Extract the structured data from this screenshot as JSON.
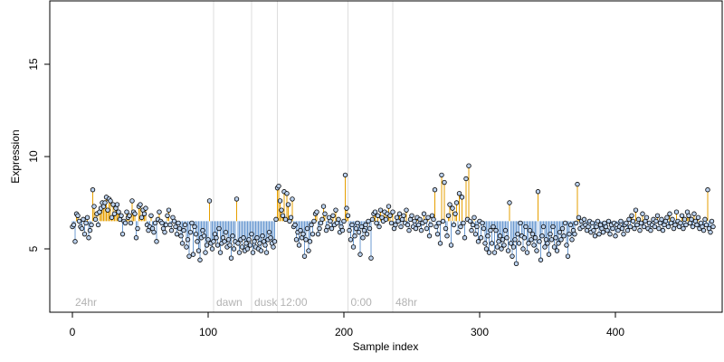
{
  "chart_data": {
    "type": "scatter",
    "xlabel": "Sample index",
    "ylabel": "Expression",
    "xlim": [
      0,
      470
    ],
    "ylim": [
      1.5,
      18.5
    ],
    "x_ticks": [
      0,
      100,
      200,
      300,
      400
    ],
    "y_ticks": [
      5,
      10,
      15
    ],
    "baseline": 6.5,
    "colors": {
      "above": "#e69f00",
      "below": "#6c9bd2",
      "point_fill": "#bcd2ee",
      "point_stroke": "#000000",
      "phase_line": "#dedede",
      "phase_text": "#b3b3b3"
    },
    "phase_markers": [
      {
        "label": "24hr",
        "x": 0
      },
      {
        "label": "dawn",
        "x": 104
      },
      {
        "label": "dusk",
        "x": 132
      },
      {
        "label": "12:00",
        "x": 151
      },
      {
        "label": "0:00",
        "x": 203
      },
      {
        "label": "48hr",
        "x": 236
      }
    ],
    "series": [
      {
        "values": [
          6.2,
          6.3,
          5.4,
          6.9,
          6.8,
          6.5,
          6.2,
          6.1,
          6.6,
          5.8,
          6.4,
          6.7,
          5.6,
          6.0,
          6.3,
          8.2,
          7.3,
          6.6,
          6.9,
          6.3,
          7.0,
          7.2,
          7.5,
          7.3,
          7.5,
          7.8,
          7.1,
          7.7,
          7.6,
          6.7,
          7.4,
          6.9,
          7.2,
          7.4,
          7.0,
          6.6,
          6.8,
          5.8,
          6.5,
          6.4,
          7.0,
          6.7,
          6.8,
          6.4,
          7.6,
          7.0,
          6.9,
          5.6,
          6.1,
          7.3,
          7.4,
          6.7,
          7.1,
          6.9,
          7.2,
          6.3,
          6.0,
          6.2,
          6.8,
          6.1,
          5.9,
          6.4,
          5.4,
          6.6,
          7.0,
          6.5,
          6.4,
          6.1,
          5.9,
          6.3,
          6.8,
          7.1,
          6.3,
          6.0,
          6.7,
          6.5,
          6.2,
          5.8,
          6.4,
          6.1,
          5.7,
          5.3,
          6.0,
          6.3,
          5.1,
          5.5,
          4.6,
          5.9,
          6.4,
          4.7,
          6.2,
          5.8,
          5.4,
          4.9,
          4.4,
          5.6,
          6.0,
          5.7,
          4.8,
          5.2,
          5.5,
          7.6,
          5.3,
          5.0,
          5.4,
          5.8,
          5.6,
          5.2,
          6.1,
          4.8,
          5.3,
          5.6,
          5.4,
          5.9,
          5.1,
          5.5,
          5.2,
          4.5,
          5.7,
          5.0,
          5.4,
          7.7,
          5.3,
          4.8,
          5.5,
          5.1,
          5.6,
          4.9,
          5.3,
          5.0,
          5.5,
          5.2,
          5.8,
          4.8,
          5.4,
          5.1,
          5.6,
          5.0,
          5.3,
          4.9,
          5.7,
          5.4,
          5.2,
          4.8,
          5.5,
          5.9,
          5.6,
          5.3,
          5.1,
          5.4,
          6.6,
          8.3,
          8.4,
          7.6,
          7.1,
          6.8,
          8.1,
          6.6,
          8.0,
          7.4,
          6.5,
          6.7,
          7.7,
          6.2,
          6.3,
          5.5,
          5.9,
          5.2,
          6.0,
          5.6,
          5.8,
          4.6,
          5.5,
          6.1,
          4.9,
          5.4,
          6.3,
          5.8,
          6.5,
          6.9,
          7.0,
          5.8,
          6.1,
          6.4,
          6.6,
          7.3,
          6.9,
          6.0,
          6.2,
          6.7,
          6.5,
          6.1,
          6.8,
          6.3,
          7.1,
          6.4,
          6.6,
          5.9,
          6.2,
          6.0,
          6.5,
          9.0,
          7.2,
          6.8,
          6.0,
          5.5,
          6.3,
          5.1,
          5.7,
          6.1
        ]
      },
      {
        "values": [
          6.4,
          5.9,
          4.7,
          6.2,
          5.6,
          6.0,
          6.3,
          5.8,
          6.5,
          6.1,
          4.5,
          6.6,
          6.9,
          7.0,
          6.4,
          6.8,
          6.2,
          7.1,
          6.7,
          6.5,
          7.0,
          6.6,
          6.9,
          7.3,
          6.8,
          6.4,
          7.0,
          6.1,
          6.3,
          6.7,
          6.5,
          6.9,
          6.2,
          6.6,
          6.8,
          6.4,
          7.1,
          6.3,
          6.0,
          6.6,
          6.8,
          6.2,
          6.5,
          6.1,
          6.7,
          6.3,
          6.6,
          6.0,
          6.4,
          6.9,
          6.5,
          6.1,
          6.7,
          5.7,
          6.3,
          6.8,
          6.6,
          8.2,
          6.2,
          5.8,
          6.4,
          5.3,
          9.0,
          6.5,
          8.6,
          6.1,
          5.7,
          6.8,
          7.4,
          5.2,
          7.2,
          6.3,
          6.9,
          7.5,
          5.9,
          8.0,
          6.2,
          7.8,
          6.4,
          5.6,
          8.8,
          6.6,
          9.5,
          6.5,
          6.0,
          6.3,
          6.7,
          5.8,
          6.2,
          5.4,
          6.5,
          5.6,
          6.4,
          6.1,
          5.3,
          5.0,
          5.7,
          4.8,
          6.0,
          5.3,
          6.2,
          4.8,
          6.0,
          5.1,
          5.4,
          5.7,
          5.0,
          5.5,
          5.2,
          6.0,
          5.6,
          4.9,
          7.5,
          5.3,
          4.6,
          5.1,
          5.5,
          4.2,
          5.8,
          5.3,
          6.4,
          5.7,
          5.0,
          5.6,
          6.2,
          4.8,
          5.3,
          6.0,
          5.5,
          5.8,
          5.2,
          5.6,
          4.9,
          8.1,
          5.4,
          4.4,
          5.7,
          6.2,
          5.1,
          5.5,
          5.3,
          4.7,
          5.8,
          5.5,
          6.2,
          5.1,
          5.6,
          4.9,
          5.3,
          5.9,
          5.5,
          6.1,
          5.7,
          6.4,
          5.2,
          4.6,
          5.8,
          6.3,
          5.5,
          6.0,
          5.8,
          6.4,
          8.5,
          6.7,
          6.1,
          6.5,
          6.2,
          6.6,
          6.3,
          6.0,
          6.2,
          6.5,
          5.9,
          6.4,
          6.0,
          5.7,
          6.2,
          6.5,
          5.8,
          6.3,
          6.1,
          5.9,
          6.4,
          6.2,
          6.0,
          6.5,
          5.8,
          6.3,
          6.1,
          6.4,
          5.7,
          6.3,
          6.0,
          6.2,
          6.5,
          6.1,
          5.8,
          6.3,
          6.4,
          6.0,
          6.6,
          6.2,
          6.8,
          6.5,
          6.1,
          7.1,
          6.3,
          6.6,
          6.0,
          6.4,
          6.9,
          6.2,
          6.5,
          6.7,
          6.1,
          6.4,
          6.0,
          6.3,
          6.6,
          6.2,
          6.5,
          6.8,
          6.1,
          6.4,
          6.6,
          6.0,
          6.3,
          6.5,
          6.7,
          6.2,
          6.9,
          6.4,
          6.6,
          6.1,
          6.3,
          7.0,
          6.5,
          6.2,
          6.4,
          6.8,
          6.1,
          6.6,
          6.3,
          7.0,
          6.8,
          6.4,
          6.6,
          6.2,
          6.9,
          6.5,
          6.3,
          6.7,
          6.1,
          6.4,
          6.2,
          6.0,
          6.6,
          6.3,
          8.2,
          6.1,
          5.9,
          6.5,
          6.2
        ]
      }
    ]
  }
}
